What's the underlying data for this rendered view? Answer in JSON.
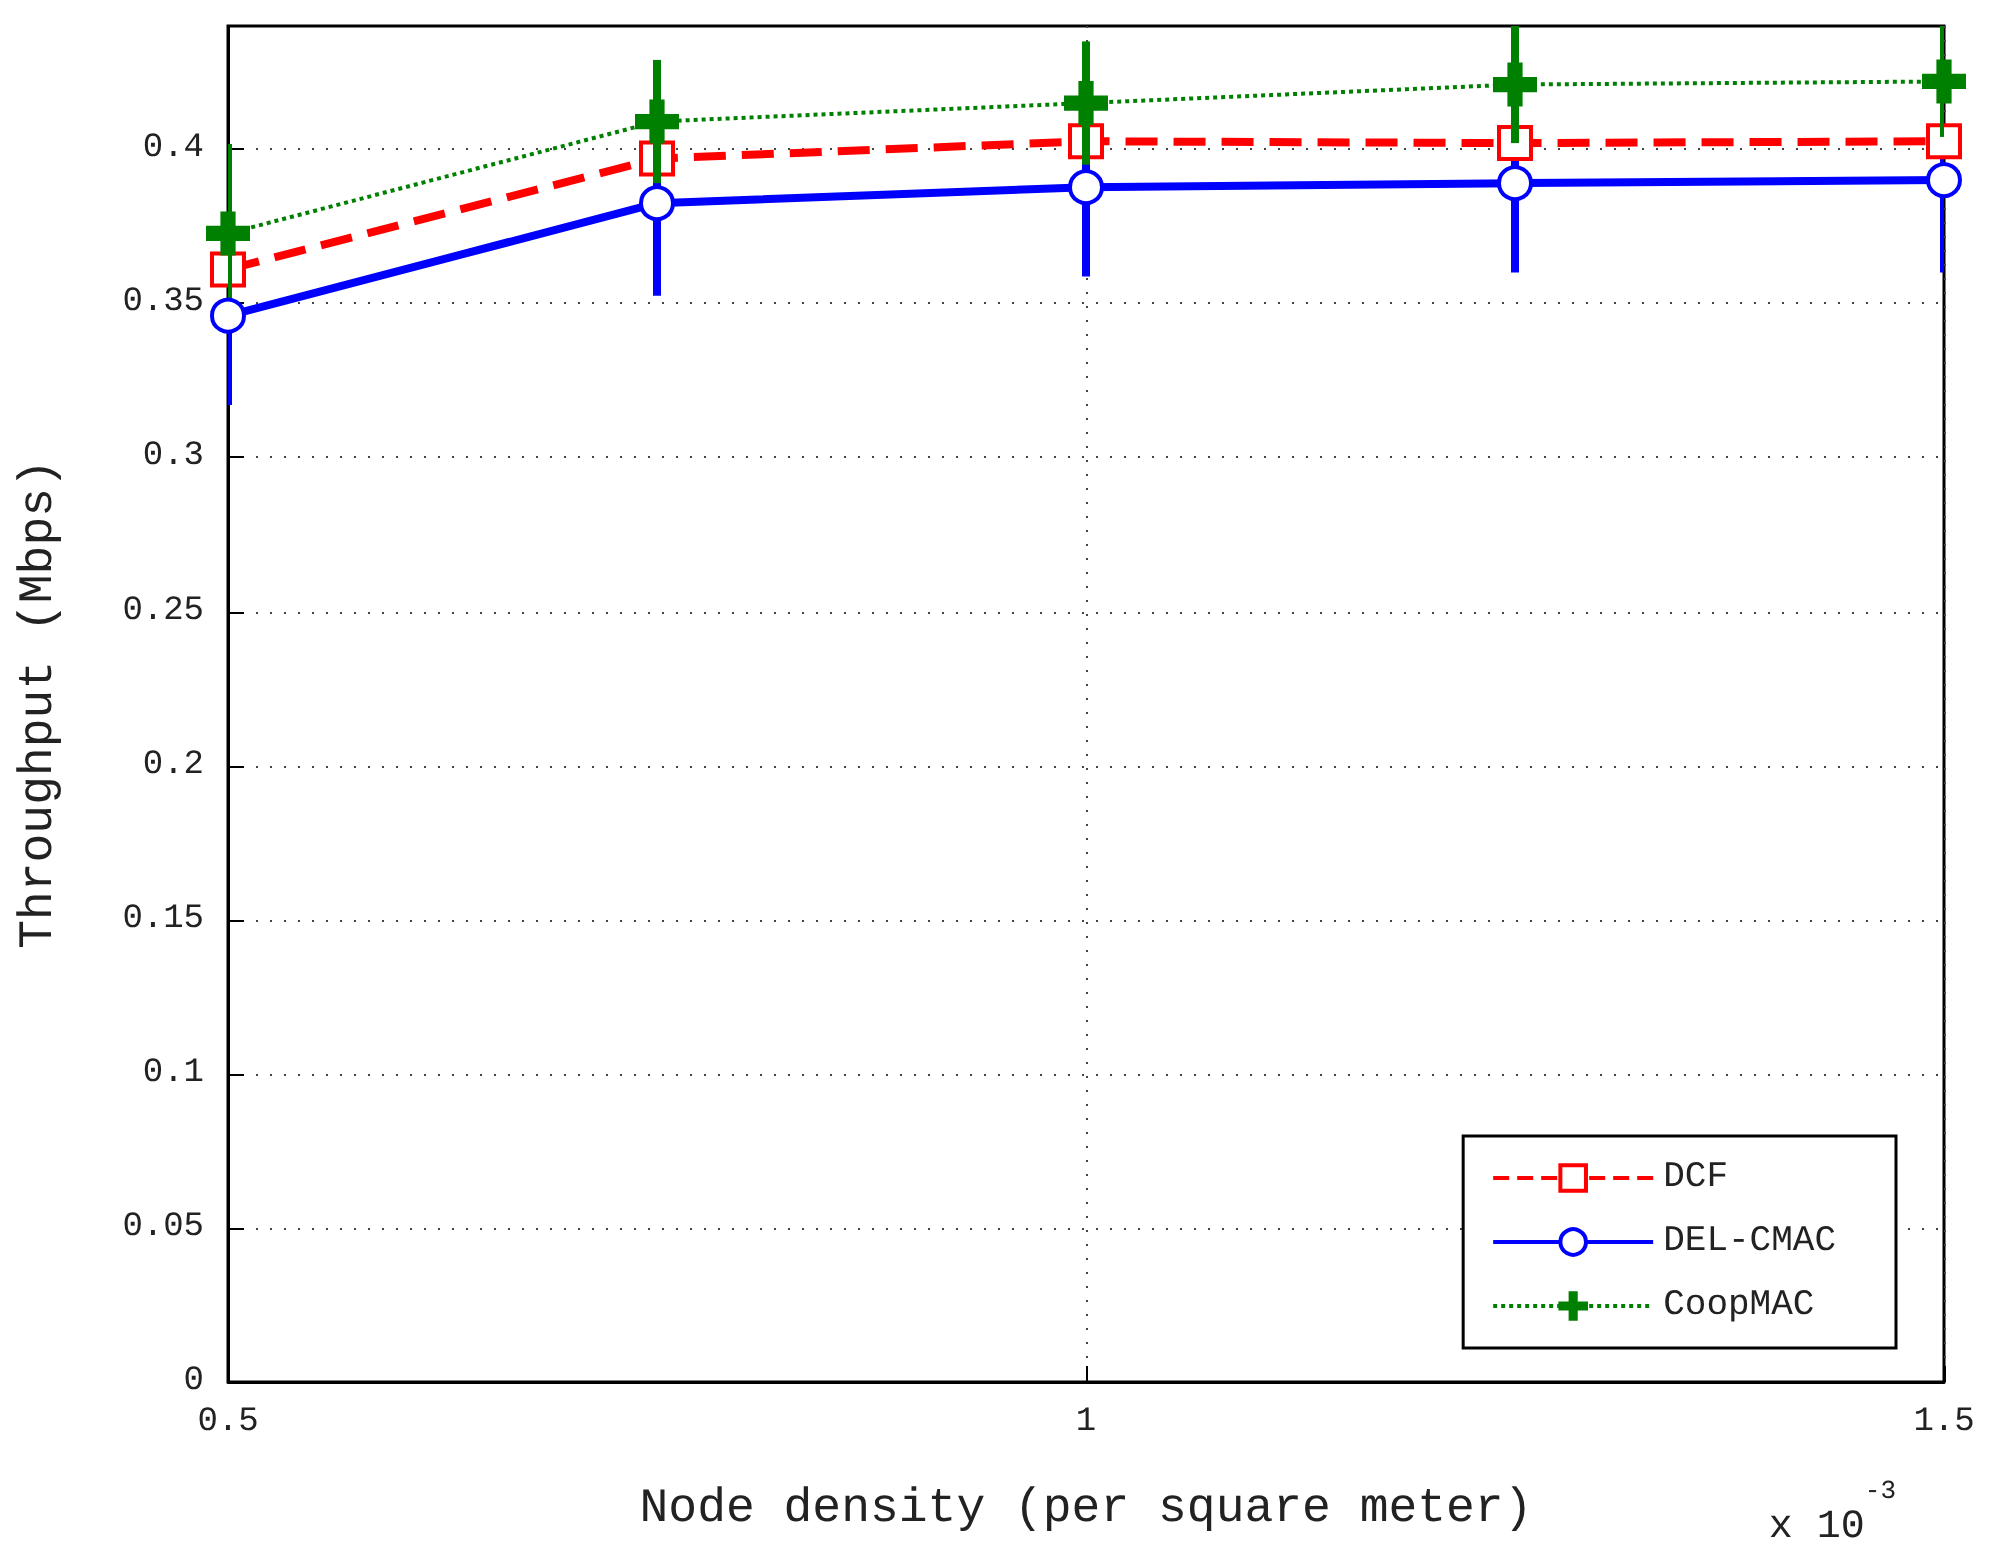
{
  "chart_data": {
    "type": "line",
    "xlabel": "Node density (per square meter)",
    "ylabel": "Throughput (Mbps)",
    "annotations": [
      "x 10$^{-3}$"
    ],
    "x": [
      0.5,
      0.75,
      1,
      1.25,
      1.5
    ],
    "series": [
      {
        "name": "DCF",
        "color": "#ff0000",
        "marker": "square",
        "line_style": "dashed",
        "values": [
          0.361,
          0.397,
          0.4026,
          0.402,
          0.4026
        ]
      },
      {
        "name": "DEL-CMAC",
        "color": "#0000ff",
        "marker": "circle",
        "line_style": "solid",
        "values": [
          0.346,
          0.3825,
          0.3877,
          0.389,
          0.39
        ],
        "errors": [
          0.029,
          0.03,
          0.029,
          0.029,
          0.03
        ]
      },
      {
        "name": "CoopMAC",
        "color": "#008000",
        "marker": "cross",
        "line_style": "dotted",
        "values": [
          0.3727,
          0.409,
          0.415,
          0.421,
          0.422
        ],
        "errors": [
          0.029,
          0.02,
          0.02,
          0.019,
          0.018
        ]
      }
    ],
    "xlim": [
      0.5,
      1.5
    ],
    "xticks": [
      0.5,
      1,
      1.5
    ],
    "ylim": [
      0,
      0.44
    ],
    "yticks": [
      0,
      0.05,
      0.1,
      0.15,
      0.2,
      0.25,
      0.3,
      0.35,
      0.4
    ],
    "grid": true,
    "legend": "bottom right"
  }
}
